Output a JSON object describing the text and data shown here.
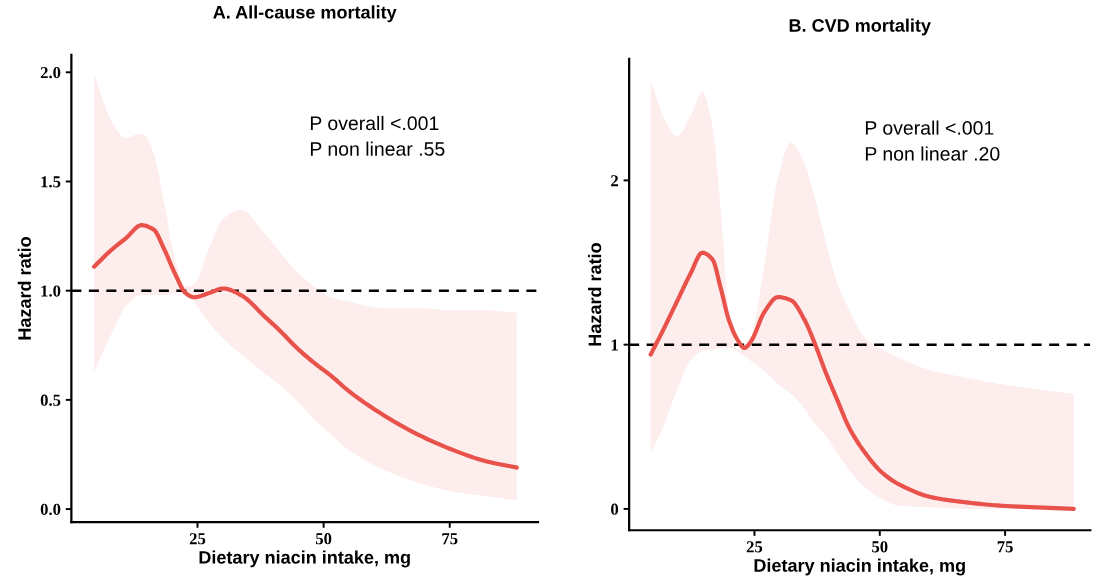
{
  "chart_data": [
    {
      "type": "line",
      "title": "A. All-cause mortality",
      "xlabel": "Dietary niacin intake, mg",
      "ylabel": "Hazard ratio",
      "xlim": [
        0,
        92.5
      ],
      "xticks": [
        25,
        50,
        75
      ],
      "ylim": [
        -0.06,
        2.08
      ],
      "yticks": [
        {
          "value": 0,
          "label": "0.0"
        },
        0.5,
        {
          "value": 1,
          "label": "1.0"
        },
        1.5,
        {
          "value": 2,
          "label": "2.0"
        }
      ],
      "line_style": "solid",
      "annotations": [
        "P overall <.001",
        "P non linear .55"
      ],
      "ref_lines": [
        {
          "axis": "y",
          "value": 1,
          "label": null,
          "color": "#000000",
          "line_style": "dashed"
        }
      ],
      "series": [
        {
          "color": "#e8524a",
          "x": [
            4.5,
            8.1,
            10.8,
            13.9,
            16.3,
            18.4,
            20.5,
            22.6,
            24.3,
            27.4,
            30.1,
            33.6,
            38.4,
            41.2,
            44.6,
            48.1,
            51.5,
            55.0,
            61.9,
            68.8,
            75.7,
            82,
            88.3
          ],
          "values": [
            1.11,
            1.19,
            1.24,
            1.3,
            1.28,
            1.19,
            1.08,
            0.99,
            0.97,
            0.99,
            1.01,
            0.98,
            0.88,
            0.82,
            0.74,
            0.67,
            0.61,
            0.54,
            0.43,
            0.34,
            0.27,
            0.22,
            0.19
          ],
          "upper": [
            1.99,
            1.77,
            1.7,
            1.72,
            1.63,
            1.4,
            1.15,
            1.02,
            1.03,
            1.2,
            1.33,
            1.37,
            1.26,
            1.18,
            1.09,
            1.02,
            0.97,
            0.95,
            0.92,
            0.92,
            0.91,
            0.91,
            0.9
          ],
          "lower": [
            0.63,
            0.81,
            0.93,
            0.98,
            0.98,
            0.98,
            0.99,
            0.99,
            0.95,
            0.85,
            0.78,
            0.71,
            0.62,
            0.57,
            0.5,
            0.41,
            0.34,
            0.27,
            0.18,
            0.12,
            0.08,
            0.06,
            0.04
          ]
        }
      ]
    },
    {
      "type": "line",
      "title": "B. CVD mortality",
      "xlabel": "Dietary niacin intake, mg",
      "ylabel": "Hazard ratio",
      "xlim": [
        0,
        92
      ],
      "xticks": [
        25,
        50,
        75
      ],
      "ylim": [
        -0.13,
        2.74
      ],
      "yticks": [
        0,
        1,
        2
      ],
      "line_style": "solid",
      "annotations": [
        "P overall <.001",
        "P non linear .20"
      ],
      "ref_lines": [
        {
          "axis": "y",
          "value": 1,
          "label": null,
          "color": "#000000",
          "line_style": "dashed"
        }
      ],
      "series": [
        {
          "color": "#e8524a",
          "x": [
            4.3,
            6.8,
            9.5,
            12.2,
            14.6,
            16.6,
            18.3,
            19.9,
            21.6,
            23.0,
            24.3,
            27.0,
            29.7,
            32.3,
            35.0,
            37.0,
            39.1,
            41.7,
            43.8,
            47.1,
            50.5,
            53.8,
            60.5,
            67.2,
            74.0,
            88.7
          ],
          "values": [
            0.94,
            1.09,
            1.26,
            1.43,
            1.56,
            1.52,
            1.34,
            1.15,
            1.03,
            0.98,
            1.02,
            1.2,
            1.29,
            1.27,
            1.15,
            1.01,
            0.84,
            0.65,
            0.5,
            0.34,
            0.22,
            0.15,
            0.07,
            0.04,
            0.02,
            0.0
          ],
          "upper": [
            2.61,
            2.39,
            2.27,
            2.39,
            2.54,
            2.33,
            1.81,
            1.18,
            0.97,
            0.99,
            1.05,
            1.49,
            2.02,
            2.23,
            2.1,
            1.9,
            1.64,
            1.36,
            1.22,
            1.04,
            0.97,
            0.92,
            0.84,
            0.8,
            0.76,
            0.7
          ],
          "lower": [
            0.34,
            0.5,
            0.72,
            0.9,
            0.96,
            0.97,
            0.98,
            0.98,
            0.96,
            0.93,
            0.9,
            0.84,
            0.76,
            0.7,
            0.61,
            0.52,
            0.45,
            0.33,
            0.24,
            0.13,
            0.06,
            0.02,
            0.01,
            0.0,
            0.0,
            0.0
          ]
        }
      ]
    }
  ]
}
